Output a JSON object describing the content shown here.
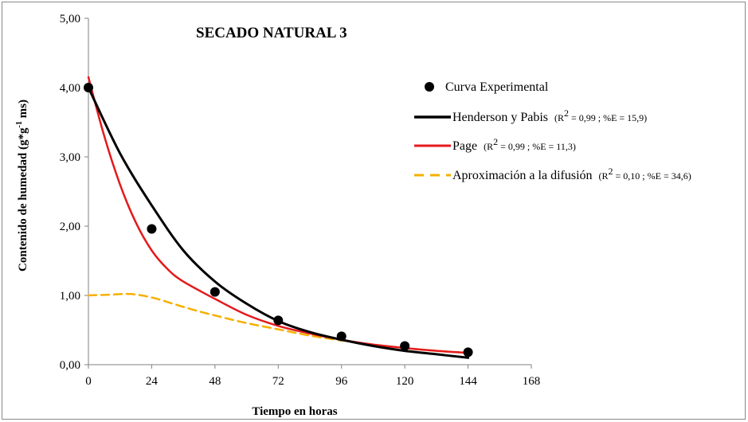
{
  "chart_data": {
    "type": "scatter",
    "title": "SECADO NATURAL 3",
    "xlabel": "Tiempo en horas",
    "ylabel_parts": [
      "Contenido de humedad (g*g",
      "-1",
      " ms)"
    ],
    "xlim": [
      0,
      168
    ],
    "ylim": [
      0,
      5
    ],
    "x_ticks": [
      0,
      24,
      48,
      72,
      96,
      120,
      144,
      168
    ],
    "x_tick_labels": [
      "0",
      "24",
      "48",
      "72",
      "96",
      "120",
      "144",
      "168"
    ],
    "y_ticks": [
      0,
      1,
      2,
      3,
      4,
      5
    ],
    "y_tick_labels": [
      "0,00",
      "1,00",
      "2,00",
      "3,00",
      "4,00",
      "5,00"
    ],
    "series": [
      {
        "name": "Curva Experimental",
        "kind": "points",
        "color": "#000000",
        "x": [
          0,
          24,
          48,
          72,
          96,
          120,
          144
        ],
        "y": [
          4.0,
          1.96,
          1.05,
          0.64,
          0.41,
          0.27,
          0.18
        ]
      },
      {
        "name": "Henderson y Pabis",
        "stat_base": "(R",
        "stat_sup": "2",
        "stat_rest": " = 0,99 ; %E = 15,9)",
        "kind": "line",
        "color": "#000000",
        "dash": "",
        "x": [
          0,
          12,
          24,
          36,
          48,
          60,
          72,
          84,
          96,
          108,
          120,
          132,
          144
        ],
        "y": [
          4.0,
          3.05,
          2.3,
          1.65,
          1.2,
          0.88,
          0.63,
          0.47,
          0.36,
          0.27,
          0.2,
          0.15,
          0.1
        ]
      },
      {
        "name": "Page",
        "stat_base": "(R",
        "stat_sup": "2",
        "stat_rest": " = 0,99 ; %E = 11,3)",
        "kind": "line",
        "color": "#e41a1c",
        "dash": "",
        "x": [
          0,
          6,
          12,
          18,
          24,
          30,
          36,
          48,
          60,
          72,
          84,
          96,
          108,
          120,
          132,
          144
        ],
        "y": [
          4.15,
          3.3,
          2.6,
          2.05,
          1.65,
          1.38,
          1.2,
          0.95,
          0.72,
          0.56,
          0.45,
          0.36,
          0.29,
          0.24,
          0.2,
          0.17
        ]
      },
      {
        "name": "Aproximación a la difusión",
        "stat_base": "(R",
        "stat_sup": "2",
        "stat_rest": " = 0,10 ; %E = 34,6)",
        "kind": "line",
        "color": "#f5b000",
        "dash": "10,6",
        "x": [
          0,
          8,
          16,
          24,
          32,
          40,
          48,
          60,
          72,
          84,
          96,
          108,
          120,
          132,
          144
        ],
        "y": [
          1.0,
          1.01,
          1.02,
          0.97,
          0.88,
          0.79,
          0.71,
          0.6,
          0.51,
          0.42,
          0.35,
          0.29,
          0.24,
          0.2,
          0.17
        ]
      }
    ],
    "legend_position": "top-right",
    "grid": false
  }
}
